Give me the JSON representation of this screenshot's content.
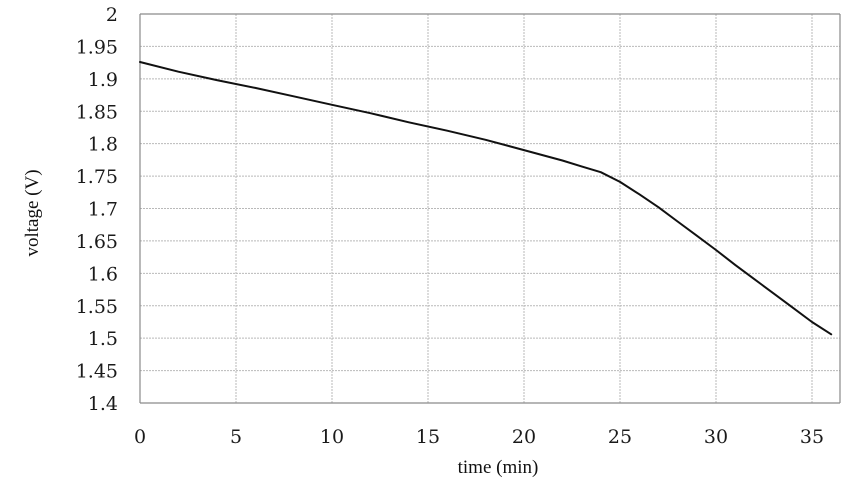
{
  "chart_data": {
    "type": "line",
    "title": "",
    "xlabel": "time (min)",
    "ylabel": "voltage (V)",
    "xlim": [
      0,
      36
    ],
    "ylim": [
      1.4,
      2.0
    ],
    "x_ticks": [
      "0",
      "5",
      "10",
      "15",
      "20",
      "25",
      "30",
      "35"
    ],
    "y_ticks": [
      "1.4",
      "1.45",
      "1.5",
      "1.55",
      "1.6",
      "1.65",
      "1.7",
      "1.75",
      "1.8",
      "1.85",
      "1.9",
      "1.95",
      "2"
    ],
    "grid": true,
    "series": [
      {
        "x": [
          0,
          2,
          4,
          6,
          8,
          10,
          12,
          14,
          16,
          18,
          20,
          22,
          23,
          24,
          25,
          26,
          27,
          28,
          29,
          30,
          31,
          32,
          33,
          34,
          35,
          36
        ],
        "values": [
          1.926,
          1.911,
          1.898,
          1.886,
          1.873,
          1.86,
          1.847,
          1.833,
          1.82,
          1.806,
          1.79,
          1.774,
          1.765,
          1.756,
          1.741,
          1.722,
          1.702,
          1.68,
          1.658,
          1.636,
          1.613,
          1.591,
          1.569,
          1.547,
          1.525,
          1.506
        ]
      }
    ]
  }
}
